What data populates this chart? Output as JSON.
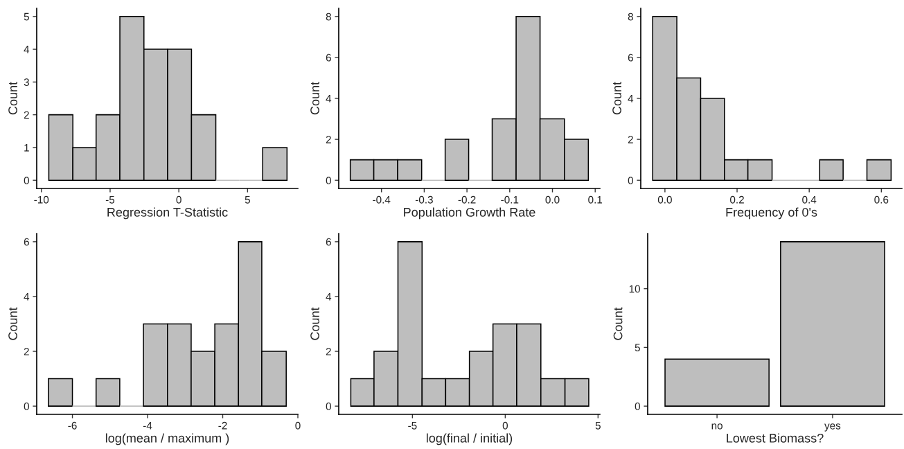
{
  "chart_data": [
    {
      "type": "histogram",
      "xlabel": "Regression T-Statistic",
      "ylabel": "Count",
      "color": "#bebebe",
      "bins": [
        -9.46,
        -7.71,
        -6.02,
        -4.29,
        -2.54,
        -0.81,
        0.92,
        2.69,
        4.4,
        6.1,
        7.87
      ],
      "values": [
        2,
        1,
        2,
        5,
        4,
        4,
        2,
        0,
        0,
        1
      ],
      "xlim": [
        -10.34,
        8.66
      ],
      "xticks": [
        {
          "value": -10,
          "label": "-10"
        },
        {
          "value": -5,
          "label": "-5"
        },
        0,
        5
      ],
      "ylim": [
        -0.25,
        5.25
      ],
      "yticks": [
        0,
        1,
        2,
        3,
        4,
        5
      ]
    },
    {
      "type": "histogram",
      "xlabel": "Population Growth Rate",
      "ylabel": "Count",
      "color": "#bebebe",
      "bins": [
        -0.473,
        -0.418,
        -0.362,
        -0.306,
        -0.251,
        -0.196,
        -0.141,
        -0.085,
        -0.029,
        0.028,
        0.084
      ],
      "values": [
        1,
        1,
        1,
        0,
        2,
        0,
        3,
        8,
        3,
        2
      ],
      "xlim": [
        -0.5,
        0.111
      ],
      "xticks": [
        {
          "value": -0.4,
          "label": "-0.4"
        },
        {
          "value": -0.3,
          "label": "-0.3"
        },
        {
          "value": -0.2,
          "label": "-0.2"
        },
        {
          "value": -0.1,
          "label": "-0.1"
        },
        {
          "value": 0,
          "label": "0.0"
        },
        0.1
      ],
      "ylim": [
        -0.4,
        8.4
      ],
      "yticks": [
        0,
        2,
        4,
        6,
        8
      ]
    },
    {
      "type": "histogram",
      "xlabel": "Frequency of 0's",
      "ylabel": "Count",
      "color": "#bebebe",
      "bins": [
        -0.034,
        0.033,
        0.099,
        0.165,
        0.23,
        0.297,
        0.363,
        0.429,
        0.494,
        0.56,
        0.627
      ],
      "values": [
        8,
        5,
        4,
        1,
        1,
        0,
        0,
        1,
        0,
        1
      ],
      "xlim": [
        -0.067,
        0.657
      ],
      "xticks": [
        {
          "value": 0,
          "label": "0.0"
        },
        0.2,
        0.4,
        0.6
      ],
      "ylim": [
        -0.4,
        8.4
      ],
      "yticks": [
        0,
        2,
        4,
        6,
        8
      ]
    },
    {
      "type": "histogram",
      "xlabel": "log(mean / maximum )",
      "ylabel": "Count",
      "color": "#bebebe",
      "bins": [
        -6.64,
        -6.0,
        -5.37,
        -4.74,
        -4.11,
        -3.47,
        -2.84,
        -2.21,
        -1.58,
        -0.96,
        -0.31
      ],
      "values": [
        1,
        0,
        1,
        0,
        3,
        3,
        2,
        3,
        6,
        2
      ],
      "xlim": [
        -6.95,
        0
      ],
      "xticks": [
        {
          "value": -6,
          "label": "-6"
        },
        {
          "value": -4,
          "label": "-4"
        },
        {
          "value": -2,
          "label": "-2"
        },
        0
      ],
      "ylim": [
        -0.3,
        6.3
      ],
      "yticks": [
        0,
        2,
        4,
        6
      ]
    },
    {
      "type": "histogram",
      "xlabel": "log(final / initial)",
      "ylabel": "Count",
      "color": "#bebebe",
      "bins": [
        -8.32,
        -7.07,
        -5.78,
        -4.48,
        -3.21,
        -1.93,
        -0.66,
        0.62,
        1.92,
        3.22,
        4.5
      ],
      "values": [
        1,
        2,
        6,
        1,
        1,
        2,
        3,
        3,
        1,
        1
      ],
      "xlim": [
        -8.97,
        5.1
      ],
      "xticks": [
        {
          "value": -5,
          "label": "-5"
        },
        0,
        5
      ],
      "ylim": [
        -0.3,
        6.3
      ],
      "yticks": [
        0,
        2,
        4,
        6
      ]
    },
    {
      "type": "bar",
      "xlabel": "Lowest Biomass?",
      "ylabel": "Count",
      "color": "#bebebe",
      "categories": [
        "no",
        "yes"
      ],
      "values": [
        4,
        14
      ],
      "ylim": [
        -0.7,
        14.7
      ],
      "yticks": [
        0,
        5,
        10
      ]
    }
  ]
}
